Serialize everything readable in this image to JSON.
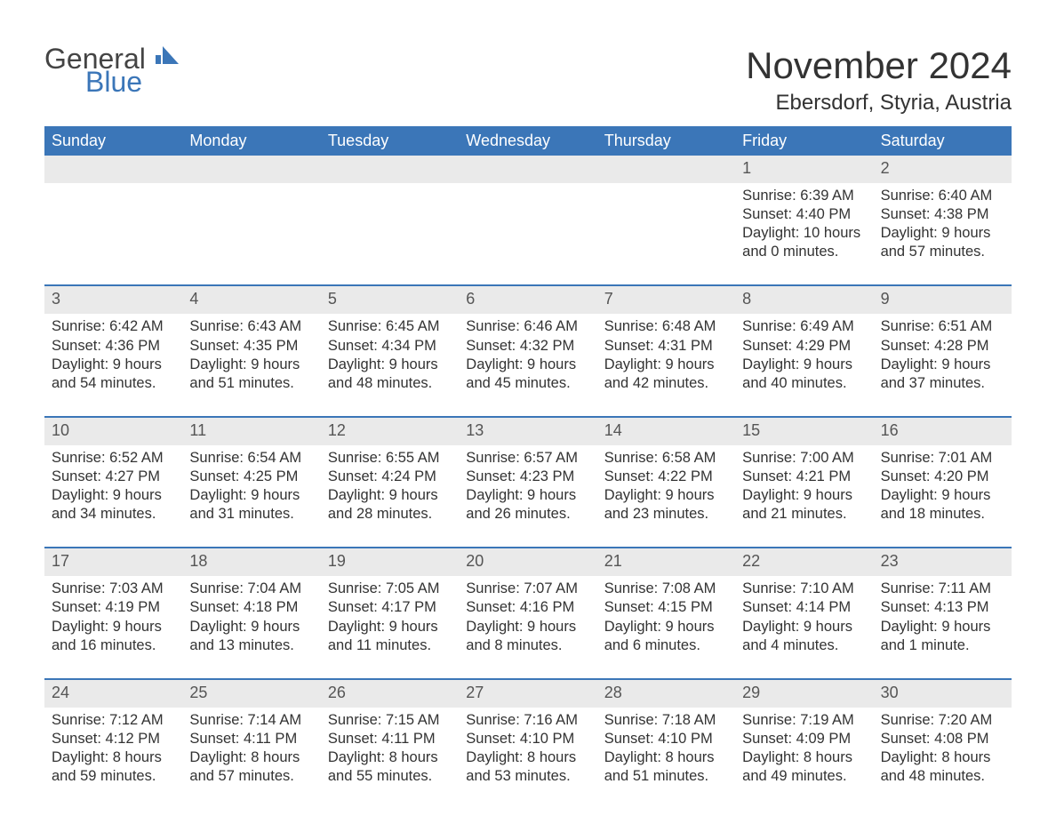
{
  "logo": {
    "text_general": "General",
    "text_blue": "Blue",
    "mark_color": "#3b76b8"
  },
  "title": "November 2024",
  "location": "Ebersdorf, Styria, Austria",
  "colors": {
    "header_bg": "#3b76b8",
    "header_text": "#ffffff",
    "daynum_bg": "#eaeaea",
    "text": "#333333",
    "week_divider": "#3b76b8",
    "background": "#ffffff"
  },
  "typography": {
    "title_fontsize": 42,
    "location_fontsize": 24,
    "header_fontsize": 18,
    "daynum_fontsize": 18,
    "body_fontsize": 16.5
  },
  "day_headers": [
    "Sunday",
    "Monday",
    "Tuesday",
    "Wednesday",
    "Thursday",
    "Friday",
    "Saturday"
  ],
  "weeks": [
    [
      {
        "empty": true
      },
      {
        "empty": true
      },
      {
        "empty": true
      },
      {
        "empty": true
      },
      {
        "empty": true
      },
      {
        "day": "1",
        "sunrise": "Sunrise: 6:39 AM",
        "sunset": "Sunset: 4:40 PM",
        "dl1": "Daylight: 10 hours",
        "dl2": "and 0 minutes."
      },
      {
        "day": "2",
        "sunrise": "Sunrise: 6:40 AM",
        "sunset": "Sunset: 4:38 PM",
        "dl1": "Daylight: 9 hours",
        "dl2": "and 57 minutes."
      }
    ],
    [
      {
        "day": "3",
        "sunrise": "Sunrise: 6:42 AM",
        "sunset": "Sunset: 4:36 PM",
        "dl1": "Daylight: 9 hours",
        "dl2": "and 54 minutes."
      },
      {
        "day": "4",
        "sunrise": "Sunrise: 6:43 AM",
        "sunset": "Sunset: 4:35 PM",
        "dl1": "Daylight: 9 hours",
        "dl2": "and 51 minutes."
      },
      {
        "day": "5",
        "sunrise": "Sunrise: 6:45 AM",
        "sunset": "Sunset: 4:34 PM",
        "dl1": "Daylight: 9 hours",
        "dl2": "and 48 minutes."
      },
      {
        "day": "6",
        "sunrise": "Sunrise: 6:46 AM",
        "sunset": "Sunset: 4:32 PM",
        "dl1": "Daylight: 9 hours",
        "dl2": "and 45 minutes."
      },
      {
        "day": "7",
        "sunrise": "Sunrise: 6:48 AM",
        "sunset": "Sunset: 4:31 PM",
        "dl1": "Daylight: 9 hours",
        "dl2": "and 42 minutes."
      },
      {
        "day": "8",
        "sunrise": "Sunrise: 6:49 AM",
        "sunset": "Sunset: 4:29 PM",
        "dl1": "Daylight: 9 hours",
        "dl2": "and 40 minutes."
      },
      {
        "day": "9",
        "sunrise": "Sunrise: 6:51 AM",
        "sunset": "Sunset: 4:28 PM",
        "dl1": "Daylight: 9 hours",
        "dl2": "and 37 minutes."
      }
    ],
    [
      {
        "day": "10",
        "sunrise": "Sunrise: 6:52 AM",
        "sunset": "Sunset: 4:27 PM",
        "dl1": "Daylight: 9 hours",
        "dl2": "and 34 minutes."
      },
      {
        "day": "11",
        "sunrise": "Sunrise: 6:54 AM",
        "sunset": "Sunset: 4:25 PM",
        "dl1": "Daylight: 9 hours",
        "dl2": "and 31 minutes."
      },
      {
        "day": "12",
        "sunrise": "Sunrise: 6:55 AM",
        "sunset": "Sunset: 4:24 PM",
        "dl1": "Daylight: 9 hours",
        "dl2": "and 28 minutes."
      },
      {
        "day": "13",
        "sunrise": "Sunrise: 6:57 AM",
        "sunset": "Sunset: 4:23 PM",
        "dl1": "Daylight: 9 hours",
        "dl2": "and 26 minutes."
      },
      {
        "day": "14",
        "sunrise": "Sunrise: 6:58 AM",
        "sunset": "Sunset: 4:22 PM",
        "dl1": "Daylight: 9 hours",
        "dl2": "and 23 minutes."
      },
      {
        "day": "15",
        "sunrise": "Sunrise: 7:00 AM",
        "sunset": "Sunset: 4:21 PM",
        "dl1": "Daylight: 9 hours",
        "dl2": "and 21 minutes."
      },
      {
        "day": "16",
        "sunrise": "Sunrise: 7:01 AM",
        "sunset": "Sunset: 4:20 PM",
        "dl1": "Daylight: 9 hours",
        "dl2": "and 18 minutes."
      }
    ],
    [
      {
        "day": "17",
        "sunrise": "Sunrise: 7:03 AM",
        "sunset": "Sunset: 4:19 PM",
        "dl1": "Daylight: 9 hours",
        "dl2": "and 16 minutes."
      },
      {
        "day": "18",
        "sunrise": "Sunrise: 7:04 AM",
        "sunset": "Sunset: 4:18 PM",
        "dl1": "Daylight: 9 hours",
        "dl2": "and 13 minutes."
      },
      {
        "day": "19",
        "sunrise": "Sunrise: 7:05 AM",
        "sunset": "Sunset: 4:17 PM",
        "dl1": "Daylight: 9 hours",
        "dl2": "and 11 minutes."
      },
      {
        "day": "20",
        "sunrise": "Sunrise: 7:07 AM",
        "sunset": "Sunset: 4:16 PM",
        "dl1": "Daylight: 9 hours",
        "dl2": "and 8 minutes."
      },
      {
        "day": "21",
        "sunrise": "Sunrise: 7:08 AM",
        "sunset": "Sunset: 4:15 PM",
        "dl1": "Daylight: 9 hours",
        "dl2": "and 6 minutes."
      },
      {
        "day": "22",
        "sunrise": "Sunrise: 7:10 AM",
        "sunset": "Sunset: 4:14 PM",
        "dl1": "Daylight: 9 hours",
        "dl2": "and 4 minutes."
      },
      {
        "day": "23",
        "sunrise": "Sunrise: 7:11 AM",
        "sunset": "Sunset: 4:13 PM",
        "dl1": "Daylight: 9 hours",
        "dl2": "and 1 minute."
      }
    ],
    [
      {
        "day": "24",
        "sunrise": "Sunrise: 7:12 AM",
        "sunset": "Sunset: 4:12 PM",
        "dl1": "Daylight: 8 hours",
        "dl2": "and 59 minutes."
      },
      {
        "day": "25",
        "sunrise": "Sunrise: 7:14 AM",
        "sunset": "Sunset: 4:11 PM",
        "dl1": "Daylight: 8 hours",
        "dl2": "and 57 minutes."
      },
      {
        "day": "26",
        "sunrise": "Sunrise: 7:15 AM",
        "sunset": "Sunset: 4:11 PM",
        "dl1": "Daylight: 8 hours",
        "dl2": "and 55 minutes."
      },
      {
        "day": "27",
        "sunrise": "Sunrise: 7:16 AM",
        "sunset": "Sunset: 4:10 PM",
        "dl1": "Daylight: 8 hours",
        "dl2": "and 53 minutes."
      },
      {
        "day": "28",
        "sunrise": "Sunrise: 7:18 AM",
        "sunset": "Sunset: 4:10 PM",
        "dl1": "Daylight: 8 hours",
        "dl2": "and 51 minutes."
      },
      {
        "day": "29",
        "sunrise": "Sunrise: 7:19 AM",
        "sunset": "Sunset: 4:09 PM",
        "dl1": "Daylight: 8 hours",
        "dl2": "and 49 minutes."
      },
      {
        "day": "30",
        "sunrise": "Sunrise: 7:20 AM",
        "sunset": "Sunset: 4:08 PM",
        "dl1": "Daylight: 8 hours",
        "dl2": "and 48 minutes."
      }
    ]
  ]
}
